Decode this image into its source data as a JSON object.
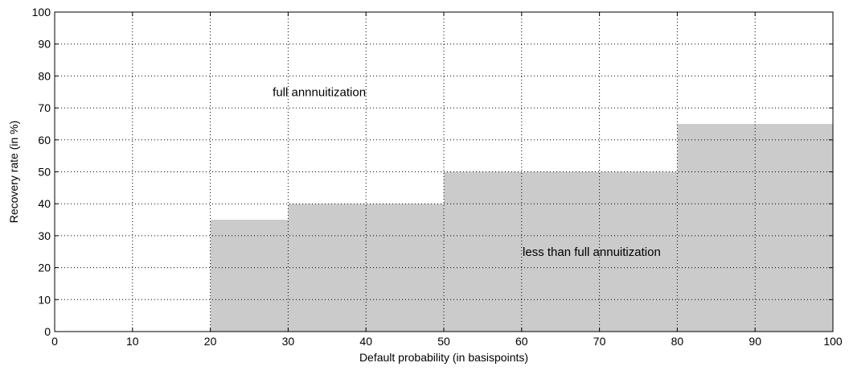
{
  "chart_data": {
    "type": "area",
    "title": "",
    "xlabel": "Default probability (in basispoints)",
    "ylabel": "Recovery rate (in %)",
    "xlim": [
      0,
      100
    ],
    "ylim": [
      0,
      100
    ],
    "xticks": [
      0,
      10,
      20,
      30,
      40,
      50,
      60,
      70,
      80,
      90,
      100
    ],
    "yticks": [
      0,
      10,
      20,
      30,
      40,
      50,
      60,
      70,
      80,
      90,
      100
    ],
    "grid": true,
    "fill_color": "#cbcbcb",
    "series": [
      {
        "x": [
          20,
          20,
          30,
          30,
          50,
          50,
          80,
          80,
          100,
          100
        ],
        "y": [
          0,
          35,
          35,
          40,
          40,
          50,
          50,
          65,
          65,
          0
        ]
      }
    ],
    "annotations": [
      {
        "text": "full annnuitization",
        "x": 34,
        "y": 75
      },
      {
        "text": "less than full annuitization",
        "x": 69,
        "y": 25
      }
    ]
  }
}
